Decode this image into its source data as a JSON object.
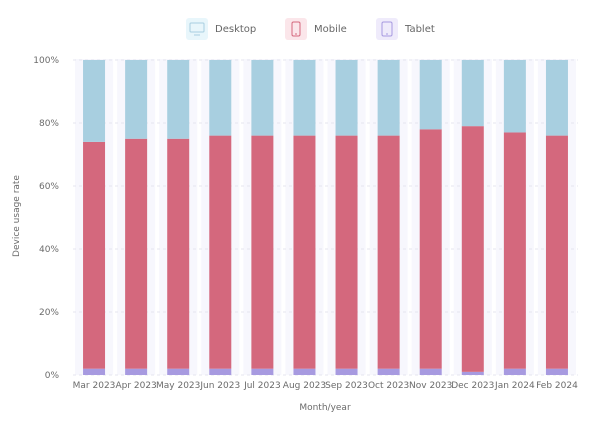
{
  "chart_data": {
    "type": "bar",
    "stacked": true,
    "percent_stacked": true,
    "xlabel": "Month/year",
    "ylabel": "Device usage rate",
    "categories": [
      "Mar 2023",
      "Apr 2023",
      "May 2023",
      "Jun 2023",
      "Jul 2023",
      "Aug 2023",
      "Sep 2023",
      "Oct 2023",
      "Nov 2023",
      "Dec 2023",
      "Jan 2024",
      "Feb 2024"
    ],
    "yticks": [
      "0%",
      "20%",
      "40%",
      "60%",
      "80%",
      "100%"
    ],
    "ylim": [
      0,
      100
    ],
    "series": [
      {
        "name": "Tablet",
        "color": "#a79ae0",
        "icon": "tablet-icon",
        "values": [
          2,
          2,
          2,
          2,
          2,
          2,
          2,
          2,
          2,
          1,
          2,
          2
        ]
      },
      {
        "name": "Mobile",
        "color": "#d4687d",
        "icon": "mobile-icon",
        "values": [
          72,
          73,
          73,
          74,
          74,
          74,
          74,
          74,
          76,
          78,
          75,
          74
        ]
      },
      {
        "name": "Desktop",
        "color": "#a8cfe0",
        "icon": "desktop-icon",
        "values": [
          26,
          25,
          25,
          24,
          24,
          24,
          24,
          24,
          22,
          21,
          23,
          24
        ]
      }
    ],
    "legend": {
      "placement": "top-center",
      "order": [
        "Desktop",
        "Mobile",
        "Tablet"
      ]
    },
    "grid": "horizontal-dashed"
  }
}
